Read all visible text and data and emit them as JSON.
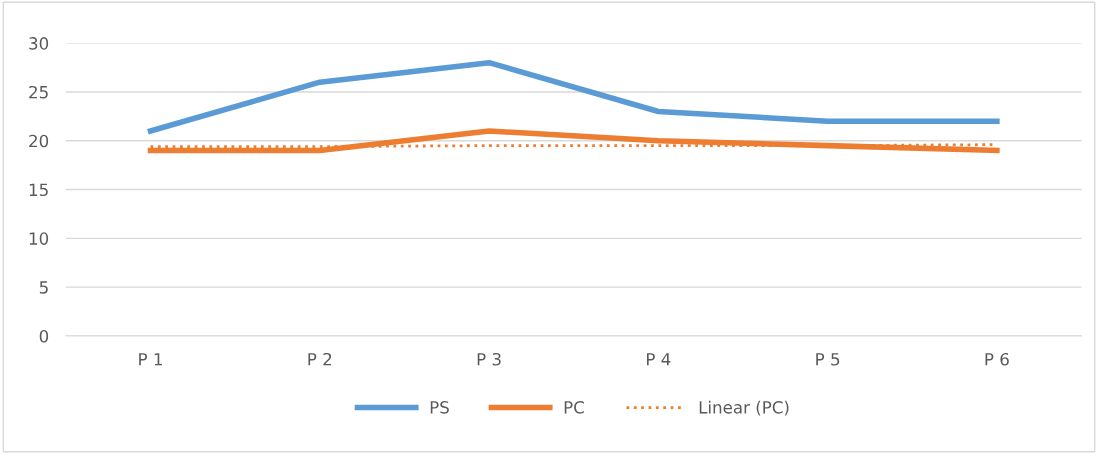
{
  "chart_data": {
    "type": "line",
    "categories": [
      "P 1",
      "P 2",
      "P 3",
      "P 4",
      "P 5",
      "P 6"
    ],
    "series": [
      {
        "name": "PS",
        "color": "#5b9bd5",
        "values": [
          21,
          26,
          28,
          23,
          22,
          22
        ]
      },
      {
        "name": "PC",
        "color": "#ed7d31",
        "values": [
          19,
          19,
          21,
          20,
          19.5,
          19
        ]
      },
      {
        "name": "Linear (PC)",
        "color": "#ed7d31",
        "line_style": "dotted",
        "values": [
          19.4,
          19.4,
          19.5,
          19.5,
          19.5,
          19.6
        ]
      }
    ],
    "ylim": [
      0,
      30
    ],
    "yticks": [
      0,
      5,
      10,
      15,
      20,
      25,
      30
    ],
    "grid": "y",
    "legend": "bottom",
    "line_style": "solid"
  }
}
